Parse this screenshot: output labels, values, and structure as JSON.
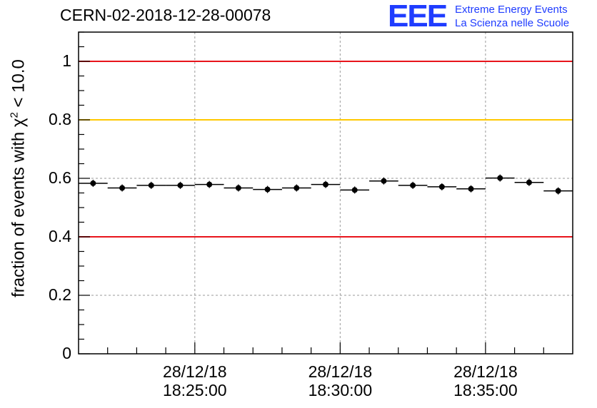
{
  "header": {
    "title": "CERN-02-2018-12-28-00078",
    "logo_text": "EEE",
    "logo_line1": "Extreme Energy Events",
    "logo_line2": "La Scienza nelle Scuole"
  },
  "colors": {
    "red_line": "#e8141b",
    "yellow_line": "#ffc800",
    "logo_blue": "#1f3cff"
  },
  "chart_data": {
    "type": "scatter",
    "title": "CERN-02-2018-12-28-00078",
    "ylabel_prefix": "fraction of events with χ",
    "ylabel_sup": "2",
    "ylabel_suffix": " < 10.0",
    "ylim": [
      0,
      1.1
    ],
    "yticks": [
      0,
      0.2,
      0.4,
      0.6,
      0.8,
      1
    ],
    "ytick_labels": [
      "0",
      "0.2",
      "0.4",
      "0.6",
      "0.8",
      "1"
    ],
    "xlim_minutes": [
      0,
      17
    ],
    "xticks": [
      {
        "minute": 4,
        "date": "28/12/18",
        "time": "18:25:00"
      },
      {
        "minute": 9,
        "date": "28/12/18",
        "time": "18:30:00"
      },
      {
        "minute": 14,
        "date": "28/12/18",
        "time": "18:35:00"
      }
    ],
    "points": [
      0.583,
      0.567,
      0.576,
      0.576,
      0.579,
      0.567,
      0.562,
      0.567,
      0.579,
      0.56,
      0.591,
      0.576,
      0.571,
      0.564,
      0.601,
      0.586,
      0.557
    ],
    "reference_lines": [
      {
        "value": 1.0,
        "color": "red"
      },
      {
        "value": 0.8,
        "color": "yellow"
      },
      {
        "value": 0.4,
        "color": "red"
      }
    ],
    "grid": true
  }
}
